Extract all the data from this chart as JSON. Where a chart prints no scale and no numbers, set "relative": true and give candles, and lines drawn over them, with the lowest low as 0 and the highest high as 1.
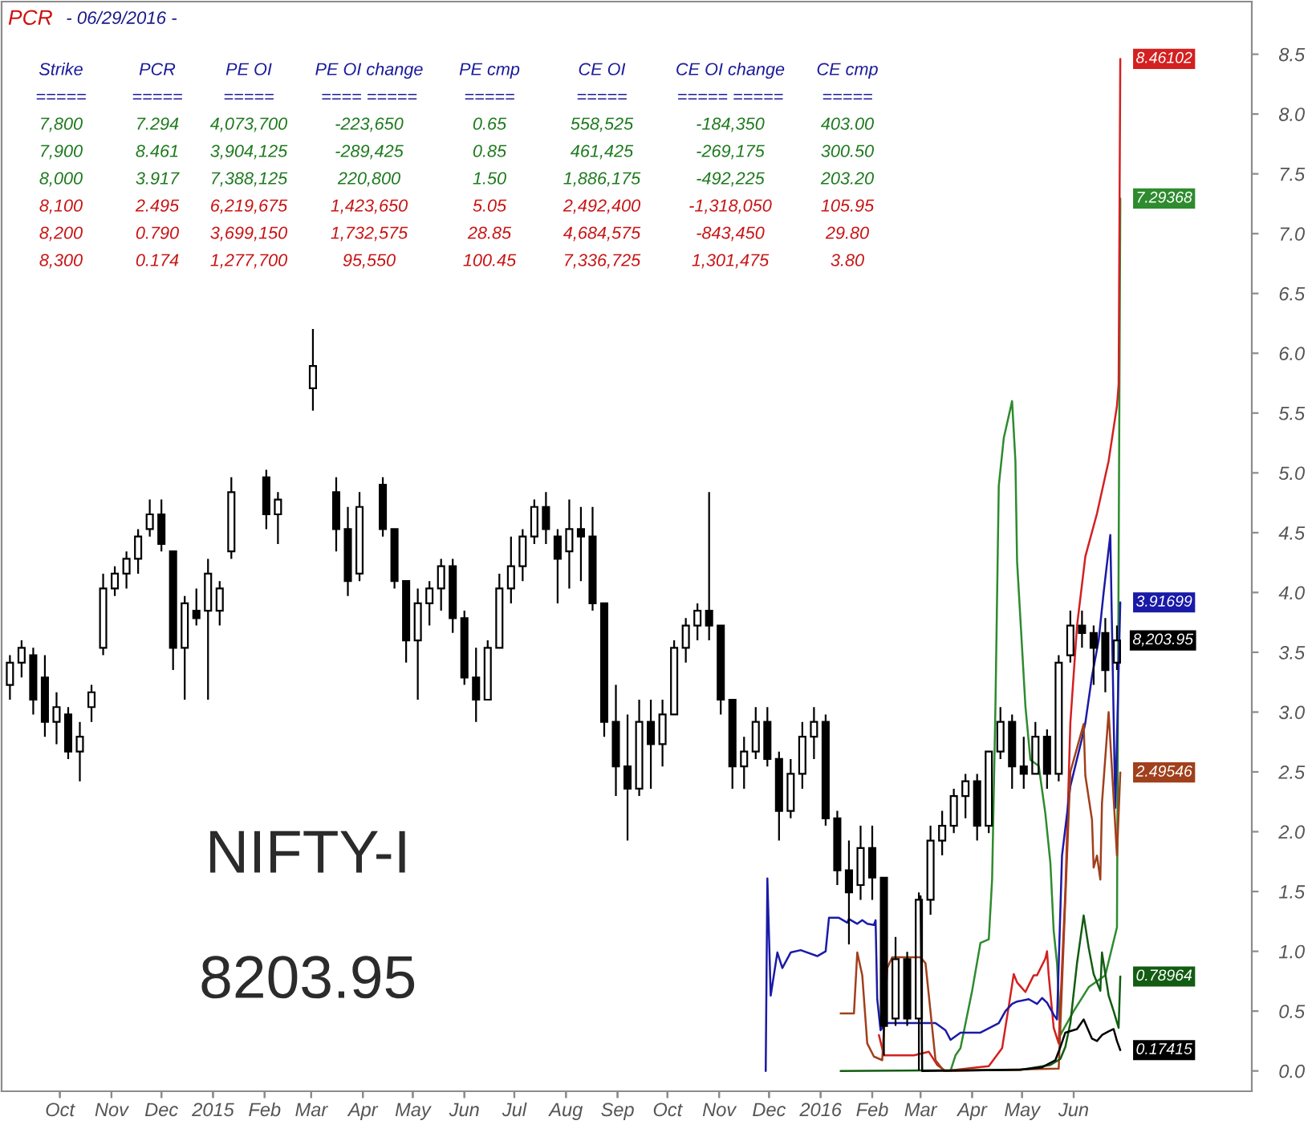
{
  "chart_data": [
    {
      "type": "candlestick",
      "relative": true,
      "tick_labels": false,
      "xlim": [
        "2014-08-27",
        "2016-09-16"
      ],
      "xticks": [
        "2014-10-01",
        "2014-11-01",
        "2014-12-01",
        "2015-01-01",
        "2015-02-01",
        "2015-03-01",
        "2015-04-01",
        "2015-05-01",
        "2015-06-01",
        "2015-07-01",
        "2015-08-01",
        "2015-09-01",
        "2015-10-01",
        "2015-11-01",
        "2015-12-01",
        "2016-01-01",
        "2016-02-01",
        "2016-03-01",
        "2016-04-01",
        "2016-05-01",
        "2016-06-01"
      ],
      "x": [
        "2014-09-01",
        "2014-09-08",
        "2014-09-15",
        "2014-09-22",
        "2014-09-29",
        "2014-10-06",
        "2014-10-13",
        "2014-10-20",
        "2014-10-27",
        "2014-11-03",
        "2014-11-10",
        "2014-11-17",
        "2014-11-24",
        "2014-12-01",
        "2014-12-08",
        "2014-12-15",
        "2014-12-22",
        "2014-12-29",
        "2015-01-05",
        "2015-01-12",
        "2015-02-02",
        "2015-02-09",
        "2015-03-02",
        "2015-03-16",
        "2015-03-23",
        "2015-03-30",
        "2015-04-13",
        "2015-04-20",
        "2015-04-27",
        "2015-05-04",
        "2015-05-11",
        "2015-05-18",
        "2015-05-25",
        "2015-06-01",
        "2015-06-08",
        "2015-06-15",
        "2015-06-22",
        "2015-06-29",
        "2015-07-06",
        "2015-07-13",
        "2015-07-20",
        "2015-07-27",
        "2015-08-03",
        "2015-08-10",
        "2015-08-17",
        "2015-08-24",
        "2015-08-31",
        "2015-09-07",
        "2015-09-14",
        "2015-09-21",
        "2015-09-28",
        "2015-10-05",
        "2015-10-12",
        "2015-10-19",
        "2015-10-26",
        "2015-11-02",
        "2015-11-09",
        "2015-11-16",
        "2015-11-23",
        "2015-11-30",
        "2015-12-07",
        "2015-12-14",
        "2015-12-21",
        "2015-12-28",
        "2016-01-04",
        "2016-01-11",
        "2016-01-18",
        "2016-01-25",
        "2016-02-01",
        "2016-02-08",
        "2016-02-15",
        "2016-02-22",
        "2016-02-29",
        "2016-03-07",
        "2016-03-14",
        "2016-03-21",
        "2016-03-28",
        "2016-04-04",
        "2016-04-11",
        "2016-04-18",
        "2016-04-25",
        "2016-05-02",
        "2016-05-09",
        "2016-05-16",
        "2016-05-23",
        "2016-05-30",
        "2016-06-06",
        "2016-06-13",
        "2016-06-20",
        "2016-06-27"
      ],
      "ohlc": [
        [
          0.52,
          0.56,
          0.5,
          0.55
        ],
        [
          0.55,
          0.58,
          0.53,
          0.57
        ],
        [
          0.56,
          0.57,
          0.48,
          0.5
        ],
        [
          0.53,
          0.56,
          0.45,
          0.47
        ],
        [
          0.47,
          0.51,
          0.44,
          0.49
        ],
        [
          0.48,
          0.49,
          0.42,
          0.43
        ],
        [
          0.43,
          0.47,
          0.39,
          0.45
        ],
        [
          0.49,
          0.52,
          0.47,
          0.51
        ],
        [
          0.57,
          0.67,
          0.56,
          0.65
        ],
        [
          0.65,
          0.68,
          0.64,
          0.67
        ],
        [
          0.67,
          0.7,
          0.65,
          0.69
        ],
        [
          0.69,
          0.73,
          0.67,
          0.72
        ],
        [
          0.73,
          0.77,
          0.72,
          0.75
        ],
        [
          0.75,
          0.77,
          0.7,
          0.71
        ],
        [
          0.7,
          0.7,
          0.54,
          0.57
        ],
        [
          0.57,
          0.64,
          0.5,
          0.63
        ],
        [
          0.62,
          0.65,
          0.6,
          0.61
        ],
        [
          0.62,
          0.69,
          0.5,
          0.67
        ],
        [
          0.62,
          0.66,
          0.6,
          0.65
        ],
        [
          0.7,
          0.8,
          0.69,
          0.78
        ],
        [
          0.8,
          0.81,
          0.73,
          0.75
        ],
        [
          0.75,
          0.78,
          0.71,
          0.77
        ],
        [
          0.92,
          1.0,
          0.89,
          0.95
        ],
        [
          0.78,
          0.8,
          0.7,
          0.73
        ],
        [
          0.73,
          0.76,
          0.64,
          0.66
        ],
        [
          0.67,
          0.78,
          0.66,
          0.76
        ],
        [
          0.79,
          0.8,
          0.72,
          0.73
        ],
        [
          0.73,
          0.73,
          0.65,
          0.66
        ],
        [
          0.66,
          0.66,
          0.55,
          0.58
        ],
        [
          0.58,
          0.65,
          0.5,
          0.63
        ],
        [
          0.63,
          0.66,
          0.6,
          0.65
        ],
        [
          0.65,
          0.69,
          0.62,
          0.68
        ],
        [
          0.68,
          0.69,
          0.59,
          0.61
        ],
        [
          0.61,
          0.62,
          0.52,
          0.53
        ],
        [
          0.53,
          0.57,
          0.47,
          0.5
        ],
        [
          0.5,
          0.58,
          0.5,
          0.57
        ],
        [
          0.57,
          0.67,
          0.57,
          0.65
        ],
        [
          0.65,
          0.72,
          0.63,
          0.68
        ],
        [
          0.68,
          0.73,
          0.66,
          0.72
        ],
        [
          0.72,
          0.77,
          0.71,
          0.76
        ],
        [
          0.76,
          0.78,
          0.71,
          0.73
        ],
        [
          0.72,
          0.73,
          0.63,
          0.69
        ],
        [
          0.7,
          0.77,
          0.65,
          0.73
        ],
        [
          0.73,
          0.76,
          0.66,
          0.72
        ],
        [
          0.72,
          0.76,
          0.62,
          0.63
        ],
        [
          0.63,
          0.63,
          0.45,
          0.47
        ],
        [
          0.47,
          0.52,
          0.37,
          0.41
        ],
        [
          0.41,
          0.48,
          0.31,
          0.38
        ],
        [
          0.38,
          0.5,
          0.37,
          0.47
        ],
        [
          0.47,
          0.5,
          0.38,
          0.44
        ],
        [
          0.44,
          0.5,
          0.41,
          0.48
        ],
        [
          0.48,
          0.58,
          0.48,
          0.57
        ],
        [
          0.57,
          0.61,
          0.55,
          0.6
        ],
        [
          0.6,
          0.63,
          0.58,
          0.62
        ],
        [
          0.62,
          0.78,
          0.58,
          0.6
        ],
        [
          0.6,
          0.6,
          0.48,
          0.5
        ],
        [
          0.5,
          0.5,
          0.38,
          0.41
        ],
        [
          0.41,
          0.45,
          0.38,
          0.43
        ],
        [
          0.43,
          0.49,
          0.42,
          0.47
        ],
        [
          0.47,
          0.49,
          0.41,
          0.42
        ],
        [
          0.42,
          0.43,
          0.31,
          0.35
        ],
        [
          0.35,
          0.42,
          0.34,
          0.4
        ],
        [
          0.4,
          0.47,
          0.38,
          0.45
        ],
        [
          0.45,
          0.49,
          0.42,
          0.47
        ],
        [
          0.47,
          0.48,
          0.33,
          0.34
        ],
        [
          0.34,
          0.35,
          0.25,
          0.27
        ],
        [
          0.27,
          0.31,
          0.17,
          0.24
        ],
        [
          0.25,
          0.33,
          0.23,
          0.3
        ],
        [
          0.3,
          0.33,
          0.23,
          0.26
        ],
        [
          0.26,
          0.26,
          0.02,
          0.06
        ],
        [
          0.07,
          0.18,
          0.06,
          0.15
        ],
        [
          0.15,
          0.16,
          0.06,
          0.07
        ],
        [
          0.07,
          0.24,
          0.0,
          0.23
        ],
        [
          0.23,
          0.33,
          0.21,
          0.31
        ],
        [
          0.31,
          0.35,
          0.29,
          0.33
        ],
        [
          0.33,
          0.38,
          0.32,
          0.37
        ],
        [
          0.37,
          0.4,
          0.34,
          0.39
        ],
        [
          0.39,
          0.4,
          0.31,
          0.33
        ],
        [
          0.33,
          0.43,
          0.32,
          0.43
        ],
        [
          0.43,
          0.49,
          0.42,
          0.47
        ],
        [
          0.47,
          0.48,
          0.38,
          0.41
        ],
        [
          0.41,
          0.45,
          0.38,
          0.4
        ],
        [
          0.4,
          0.47,
          0.4,
          0.45
        ],
        [
          0.45,
          0.46,
          0.38,
          0.4
        ],
        [
          0.4,
          0.56,
          0.39,
          0.55
        ],
        [
          0.56,
          0.62,
          0.55,
          0.6
        ],
        [
          0.6,
          0.62,
          0.57,
          0.59
        ],
        [
          0.59,
          0.6,
          0.52,
          0.57
        ],
        [
          0.59,
          0.61,
          0.51,
          0.54
        ],
        [
          0.55,
          0.6,
          0.54,
          0.58
        ]
      ],
      "annotations": [
        "NIFTY-I",
        "8203.95",
        {
          "text": "8,203.95",
          "x": "2016-06-27",
          "y": 0.58
        }
      ]
    },
    {
      "type": "line",
      "title": "PCR",
      "subtitle": "- 06/29/2016 -",
      "xlim": [
        "2014-08-27",
        "2016-09-16"
      ],
      "xticks": [
        {
          "value": "2014-10-01",
          "label": "Oct"
        },
        {
          "value": "2014-11-01",
          "label": "Nov"
        },
        {
          "value": "2014-12-01",
          "label": "Dec"
        },
        {
          "value": "2015-01-01",
          "label": "2015"
        },
        {
          "value": "2015-02-01",
          "label": "Feb"
        },
        {
          "value": "2015-03-01",
          "label": "Mar"
        },
        {
          "value": "2015-04-01",
          "label": "Apr"
        },
        {
          "value": "2015-05-01",
          "label": "May"
        },
        {
          "value": "2015-06-01",
          "label": "Jun"
        },
        {
          "value": "2015-07-01",
          "label": "Jul"
        },
        {
          "value": "2015-08-01",
          "label": "Aug"
        },
        {
          "value": "2015-09-01",
          "label": "Sep"
        },
        {
          "value": "2015-10-01",
          "label": "Oct"
        },
        {
          "value": "2015-11-01",
          "label": "Nov"
        },
        {
          "value": "2015-12-01",
          "label": "Dec"
        },
        {
          "value": "2016-01-01",
          "label": "2016"
        },
        {
          "value": "2016-02-01",
          "label": "Feb"
        },
        {
          "value": "2016-03-01",
          "label": "Mar"
        },
        {
          "value": "2016-04-01",
          "label": "Apr"
        },
        {
          "value": "2016-05-01",
          "label": "May"
        },
        {
          "value": "2016-06-01",
          "label": "Jun"
        }
      ],
      "ylim": [
        -0.17,
        8.94
      ],
      "yticks": [
        {
          "value": 0,
          "label": "0.0"
        },
        0.5,
        {
          "value": 1,
          "label": "1.0"
        },
        1.5,
        {
          "value": 2,
          "label": "2.0"
        },
        2.5,
        {
          "value": 3,
          "label": "3.0"
        },
        3.5,
        {
          "value": 4,
          "label": "4.0"
        },
        4.5,
        {
          "value": 5,
          "label": "5.0"
        },
        5.5,
        {
          "value": 6,
          "label": "6.0"
        },
        6.5,
        {
          "value": 7,
          "label": "7.0"
        },
        7.5,
        {
          "value": 8,
          "label": "8.0"
        },
        8.5
      ],
      "series": [
        {
          "color": "#2e8b2e",
          "x": [
            "2016-03-19",
            "2016-03-22",
            "2016-03-25",
            "2016-04-01",
            "2016-04-06",
            "2016-04-11",
            "2016-04-13",
            "2016-04-15",
            "2016-04-17",
            "2016-04-20",
            "2016-04-25",
            "2016-04-27",
            "2016-04-28",
            "2016-05-03",
            "2016-05-06",
            "2016-05-11",
            "2016-05-15",
            "2016-05-18",
            "2016-05-20",
            "2016-05-22",
            "2016-05-24",
            "2016-06-01",
            "2016-06-10",
            "2016-06-20",
            "2016-06-27",
            "2016-06-29"
          ],
          "values": [
            0.0,
            0.13,
            0.19,
            0.67,
            1.07,
            1.1,
            1.6,
            3.05,
            4.89,
            5.29,
            5.6,
            5.1,
            4.26,
            3.05,
            2.6,
            2.55,
            2.15,
            1.74,
            1.17,
            0.9,
            0.3,
            0.5,
            0.7,
            0.8,
            1.2,
            7.29368
          ],
          "value_labels": [
            null,
            null,
            null,
            null,
            null,
            null,
            null,
            null,
            null,
            null,
            null,
            null,
            null,
            null,
            null,
            null,
            null,
            null,
            null,
            null,
            null,
            null,
            null,
            null,
            null,
            "7.29368"
          ]
        },
        {
          "color": "#d42020",
          "x": [
            "2016-02-05",
            "2016-02-08",
            "2016-02-26",
            "2016-03-06",
            "2016-03-11",
            "2016-03-16",
            "2016-04-04",
            "2016-04-11",
            "2016-04-19",
            "2016-04-23",
            "2016-04-26",
            "2016-04-28",
            "2016-05-03",
            "2016-05-08",
            "2016-05-10",
            "2016-05-15",
            "2016-05-16",
            "2016-05-17",
            "2016-05-20",
            "2016-05-23",
            "2016-05-27",
            "2016-05-30",
            "2016-06-03",
            "2016-06-08",
            "2016-06-15",
            "2016-06-22",
            "2016-06-27",
            "2016-06-28",
            "2016-06-29"
          ],
          "values": [
            0.3,
            0.13,
            0.13,
            0.16,
            0.05,
            0.0,
            0.03,
            0.04,
            0.19,
            0.54,
            0.81,
            0.74,
            0.66,
            0.8,
            0.8,
            0.94,
            1.0,
            0.8,
            0.36,
            0.23,
            1.5,
            2.91,
            3.72,
            4.3,
            4.66,
            5.1,
            5.56,
            5.74,
            8.46102
          ],
          "value_labels": [
            null,
            null,
            null,
            null,
            null,
            null,
            null,
            null,
            null,
            null,
            null,
            null,
            null,
            null,
            null,
            null,
            null,
            null,
            null,
            null,
            null,
            null,
            null,
            null,
            null,
            null,
            null,
            null,
            "8.46102"
          ]
        },
        {
          "color": "#1a1aa8",
          "x": [
            "2015-11-29",
            "2015-11-30",
            "2015-12-02",
            "2015-12-06",
            "2015-12-09",
            "2015-12-14",
            "2015-12-20",
            "2015-12-30",
            "2016-01-04",
            "2016-01-06",
            "2016-01-12",
            "2016-01-17",
            "2016-01-18",
            "2016-01-23",
            "2016-01-26",
            "2016-01-29",
            "2016-02-02",
            "2016-02-03",
            "2016-02-04",
            "2016-02-06",
            "2016-02-09",
            "2016-03-10",
            "2016-03-16",
            "2016-03-19",
            "2016-03-25",
            "2016-04-06",
            "2016-04-17",
            "2016-04-21",
            "2016-04-25",
            "2016-04-28",
            "2016-05-05",
            "2016-05-10",
            "2016-05-13",
            "2016-05-16",
            "2016-05-20",
            "2016-05-22",
            "2016-05-25",
            "2016-05-30",
            "2016-06-06",
            "2016-06-08",
            "2016-06-12",
            "2016-06-16",
            "2016-06-19",
            "2016-06-23",
            "2016-06-26",
            "2016-06-29"
          ],
          "values": [
            0.0,
            1.61,
            0.63,
            0.99,
            0.86,
            0.99,
            1.01,
            0.96,
            1.0,
            1.28,
            1.28,
            1.24,
            1.27,
            1.23,
            1.26,
            1.23,
            1.22,
            1.26,
            0.6,
            0.34,
            0.4,
            0.4,
            0.34,
            0.26,
            0.32,
            0.32,
            0.4,
            0.5,
            0.56,
            0.58,
            0.6,
            0.56,
            0.61,
            0.57,
            0.47,
            0.43,
            1.8,
            2.38,
            2.78,
            2.91,
            3.3,
            3.6,
            4.0,
            4.48,
            2.2,
            3.91699
          ],
          "value_labels": [
            null,
            null,
            null,
            null,
            null,
            null,
            null,
            null,
            null,
            null,
            null,
            null,
            null,
            null,
            null,
            null,
            null,
            null,
            null,
            null,
            null,
            null,
            null,
            null,
            null,
            null,
            null,
            null,
            null,
            null,
            null,
            null,
            null,
            null,
            null,
            null,
            null,
            null,
            null,
            null,
            null,
            null,
            null,
            null,
            null,
            "3.91699"
          ]
        },
        {
          "color": "#a0401c",
          "x": [
            "2016-01-13",
            "2016-01-21",
            "2016-01-23",
            "2016-01-26",
            "2016-01-29",
            "2016-02-02",
            "2016-02-07",
            "2016-02-10",
            "2016-02-13",
            "2016-03-01",
            "2016-03-04",
            "2016-03-10",
            "2016-03-15",
            "2016-05-23",
            "2016-05-30",
            "2016-06-07",
            "2016-06-08",
            "2016-06-12",
            "2016-06-13",
            "2016-06-15",
            "2016-06-17",
            "2016-06-18",
            "2016-06-22",
            "2016-06-27",
            "2016-06-29"
          ],
          "values": [
            0.48,
            0.48,
            0.99,
            0.8,
            0.23,
            0.12,
            0.09,
            0.86,
            0.95,
            0.95,
            0.9,
            0.09,
            0.0,
            0.02,
            2.5,
            2.9,
            2.47,
            2.1,
            1.7,
            1.8,
            1.6,
            2.24,
            3.0,
            1.8,
            2.49546
          ],
          "value_labels": [
            null,
            null,
            null,
            null,
            null,
            null,
            null,
            null,
            null,
            null,
            null,
            null,
            null,
            null,
            null,
            null,
            null,
            null,
            null,
            null,
            null,
            null,
            null,
            null,
            "2.49546"
          ]
        },
        {
          "color": "#135c13",
          "x": [
            "2016-01-13",
            "2016-04-30",
            "2016-05-18",
            "2016-05-24",
            "2016-05-27",
            "2016-05-30",
            "2016-06-03",
            "2016-06-07",
            "2016-06-10",
            "2016-06-13",
            "2016-06-17",
            "2016-06-18",
            "2016-06-22",
            "2016-06-25",
            "2016-06-28",
            "2016-06-29"
          ],
          "values": [
            0.0,
            0.01,
            0.05,
            0.1,
            0.2,
            0.4,
            0.9,
            1.3,
            1.03,
            0.81,
            0.67,
            0.99,
            0.63,
            0.5,
            0.36,
            0.78964
          ],
          "value_labels": [
            null,
            null,
            null,
            null,
            null,
            null,
            null,
            null,
            null,
            null,
            null,
            null,
            null,
            null,
            null,
            "0.78964"
          ]
        },
        {
          "color": "#000000",
          "x": [
            "2016-03-01",
            "2016-03-02",
            "2016-04-30",
            "2016-05-13",
            "2016-05-21",
            "2016-05-24",
            "2016-05-27",
            "2016-06-03",
            "2016-06-07",
            "2016-06-12",
            "2016-06-15",
            "2016-06-18",
            "2016-06-22",
            "2016-06-25",
            "2016-06-27",
            "2016-06-29"
          ],
          "values": [
            1.46,
            0.0,
            0.01,
            0.03,
            0.09,
            0.2,
            0.32,
            0.35,
            0.43,
            0.27,
            0.25,
            0.3,
            0.33,
            0.35,
            0.25,
            0.17415
          ],
          "value_labels": [
            null,
            null,
            null,
            null,
            null,
            null,
            null,
            null,
            null,
            null,
            null,
            null,
            null,
            null,
            null,
            "0.17415"
          ]
        }
      ],
      "annotations": [
        "Strike",
        "PCR",
        "PE OI",
        "PE OI change",
        "PE cmp",
        "CE OI",
        "CE OI change",
        "CE cmp",
        "=====",
        "=====",
        "=====",
        "==== =====",
        "=====",
        "=====",
        "===== =====",
        "=====",
        "7,800",
        "7.294",
        "4,073,700",
        "-223,650",
        "0.65",
        "558,525",
        "-184,350",
        "403.00",
        "7,900",
        "8.461",
        "3,904,125",
        "-289,425",
        "0.85",
        "461,425",
        "-269,175",
        "300.50",
        "8,000",
        "3.917",
        "7,388,125",
        "220,800",
        "1.50",
        "1,886,175",
        "-492,225",
        "203.20",
        "8,100",
        "2.495",
        "6,219,675",
        "1,423,650",
        "5.05",
        "2,492,400",
        "-1,318,050",
        "105.95",
        "8,200",
        "0.790",
        "3,699,150",
        "1,732,575",
        "28.85",
        "4,684,575",
        "-843,450",
        "29.80",
        "8,300",
        "0.174",
        "1,277,700",
        "95,550",
        "100.45",
        "7,336,725",
        "1,301,475",
        "3.80"
      ]
    }
  ]
}
